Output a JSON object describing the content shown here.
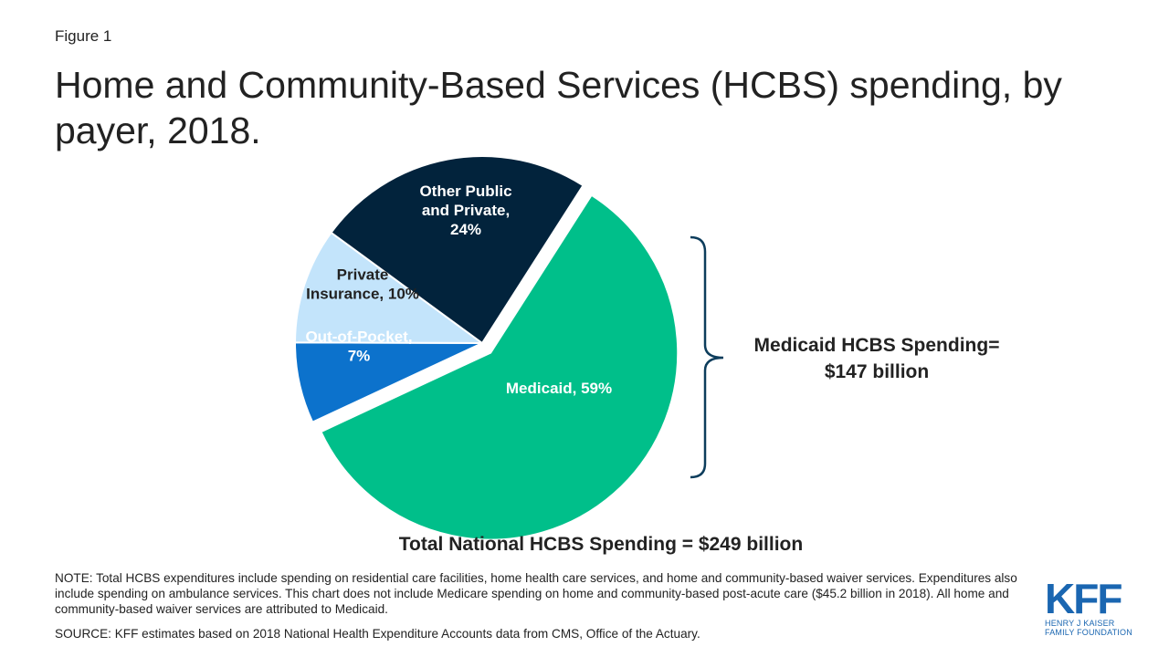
{
  "figure_label": "Figure 1",
  "title": "Home and Community-Based Services (HCBS) spending, by payer, 2018.",
  "chart_data": {
    "type": "pie",
    "slices": [
      {
        "name": "Medicaid",
        "value": 59,
        "label_line1": "Medicaid,  59%",
        "label_line2": "",
        "label_line3": "",
        "color": "#00bf8a",
        "label_color": "#ffffff",
        "exploded": true
      },
      {
        "name": "Out-of-Pocket",
        "value": 7,
        "label_line1": "Out-of-Pocket,",
        "label_line2": "7%",
        "label_line3": "",
        "color": "#0c72cc",
        "label_color": "#ffffff",
        "exploded": false
      },
      {
        "name": "Private Insurance",
        "value": 10,
        "label_line1": "Private",
        "label_line2": "Insurance, 10%",
        "label_line3": "",
        "color": "#c3e4fb",
        "label_color": "#222222",
        "exploded": false
      },
      {
        "name": "Other Public and Private",
        "value": 24,
        "label_line1": "Other Public",
        "label_line2": "and Private,",
        "label_line3": "24%",
        "color": "#02233c",
        "label_color": "#ffffff",
        "exploded": false
      }
    ],
    "bracket_color": "#0d3d5c"
  },
  "callout": {
    "line1": "Medicaid HCBS Spending=",
    "line2": "$147 billion"
  },
  "total_spending": "Total National HCBS Spending = $249 billion",
  "note": "NOTE: Total HCBS expenditures include spending on residential care facilities, home health care services, and home and community-based waiver services. Expenditures also include spending on ambulance services. This chart does not include Medicare spending on home and community-based post-acute care ($45.2 billion in 2018). All home and community-based  waiver services are attributed to Medicaid.",
  "source": "SOURCE: KFF estimates based on 2018 National Health Expenditure Accounts data from CMS, Office of the Actuary.",
  "logo": {
    "mark": "KFF",
    "line1": "HENRY J KAISER",
    "line2": "FAMILY FOUNDATION",
    "color": "#1a66b1"
  }
}
